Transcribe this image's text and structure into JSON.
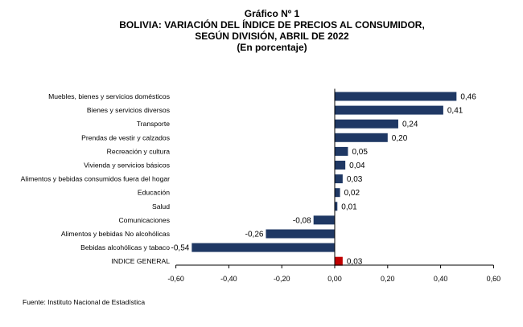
{
  "header": {
    "graphic_label": "Gráfico Nº 1",
    "title_line_1": "BOLIVIA: VARIACIÓN DEL ÍNDICE DE PRECIOS AL CONSUMIDOR,",
    "title_line_2": "SEGÚN DIVISIÓN, ABRIL DE 2022",
    "subtitle": "(En porcentaje)"
  },
  "footer": {
    "source": "Fuente: Instituto Nacional de Estadística"
  },
  "colors": {
    "bar": "#1F3864",
    "highlight_bar": "#C00000",
    "axis": "#000000"
  },
  "chart_data": {
    "type": "bar",
    "orientation": "horizontal",
    "title": "BOLIVIA: VARIACIÓN DEL ÍNDICE DE PRECIOS AL CONSUMIDOR, SEGÚN DIVISIÓN, ABRIL DE 2022",
    "subtitle": "(En porcentaje)",
    "xlabel": "",
    "ylabel": "",
    "xlim": [
      -0.6,
      0.6
    ],
    "xticks": [
      -0.6,
      -0.4,
      -0.2,
      0,
      0.2,
      0.4,
      0.6
    ],
    "xtick_labels": [
      "-0,60",
      "-0,40",
      "-0,20",
      "0,00",
      "0,20",
      "0,40",
      "0,60"
    ],
    "grid": false,
    "categories": [
      "Muebles, bienes y servicios domésticos",
      "Bienes y servicios diversos",
      "Transporte",
      "Prendas de vestir y calzados",
      "Recreación y cultura",
      "Vivienda y servicios básicos",
      "Alimentos y bebidas consumidos fuera del hogar",
      "Educación",
      "Salud",
      "Comunicaciones",
      "Alimentos y bebidas No alcohólicas",
      "Bebidas alcohólicas y tabaco",
      "INDICE GENERAL"
    ],
    "values": [
      0.46,
      0.41,
      0.24,
      0.2,
      0.05,
      0.04,
      0.03,
      0.02,
      0.01,
      -0.08,
      -0.26,
      -0.54,
      0.03
    ],
    "value_labels": [
      "0,46",
      "0,41",
      "0,24",
      "0,20",
      "0,05",
      "0,04",
      "0,03",
      "0,02",
      "0,01",
      "-0,08",
      "-0,26",
      "-0,54",
      "0,03"
    ],
    "highlight": [
      false,
      false,
      false,
      false,
      false,
      false,
      false,
      false,
      false,
      false,
      false,
      false,
      true
    ]
  }
}
